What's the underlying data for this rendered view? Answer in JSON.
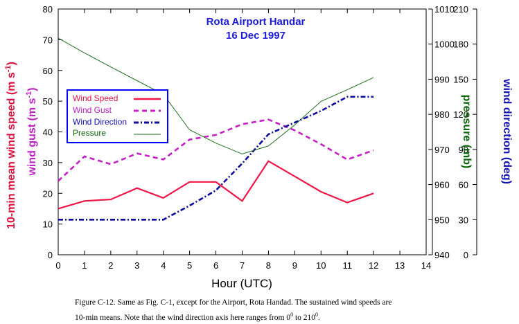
{
  "chart_data": {
    "type": "line",
    "title": "Rota Airport Handar",
    "subtitle": "16 Dec 1997",
    "xlabel": "Hour (UTC)",
    "x": [
      0,
      1,
      2,
      3,
      4,
      5,
      6,
      7,
      8,
      9,
      10,
      11,
      12
    ],
    "xlim": [
      0,
      14
    ],
    "xticks": [
      "0",
      "1",
      "2",
      "3",
      "4",
      "5",
      "6",
      "7",
      "8",
      "9",
      "10",
      "11",
      "12",
      "13",
      "14"
    ],
    "axes": {
      "left1": {
        "label_main": "10-min mean wind speed (m s",
        "label_sup": "-1",
        "label_end": ")",
        "color": "#e0103c",
        "range": [
          0,
          80
        ],
        "ticks": [
          "0",
          "10",
          "20",
          "30",
          "40",
          "50",
          "60",
          "70",
          "80"
        ]
      },
      "left2": {
        "label_main": "wind gust (m s",
        "label_sup": "-1",
        "label_end": ")",
        "color": "#c020c8"
      },
      "pressure": {
        "label": "pressure (mb)",
        "color": "#0a640a",
        "range": [
          940,
          1010
        ],
        "ticks": [
          "940",
          "950",
          "960",
          "970",
          "980",
          "990",
          "1000",
          "1010"
        ]
      },
      "direction": {
        "label": "wind direction (deg)",
        "color": "#1010b4",
        "range": [
          0,
          210
        ],
        "ticks": [
          "0",
          "30",
          "60",
          "90",
          "120",
          "150",
          "180",
          "210"
        ]
      }
    },
    "series": [
      {
        "name": "Wind Speed",
        "axis": "left1",
        "style": "solid",
        "color": "#f01446",
        "values": [
          15.0,
          17.5,
          18.0,
          21.7,
          18.5,
          23.7,
          23.7,
          17.5,
          30.5,
          25.5,
          20.5,
          17.0,
          20.0
        ]
      },
      {
        "name": "Wind Gust",
        "axis": "left1",
        "style": "dashed",
        "color": "#c81ec8",
        "values": [
          24.0,
          32.0,
          29.5,
          33.0,
          31.0,
          37.5,
          39.0,
          42.5,
          44.0,
          40.5,
          36.0,
          31.0,
          34.0
        ]
      },
      {
        "name": "Wind Direction",
        "axis": "direction",
        "style": "dashdot",
        "color": "#0a0aa0",
        "values": [
          30,
          30,
          30,
          30,
          30,
          42,
          55,
          78,
          103,
          113,
          123,
          135,
          135
        ]
      },
      {
        "name": "Pressure",
        "axis": "pressure",
        "style": "thin",
        "color": "#1e6e1e",
        "values": [
          1001.7,
          997.5,
          993.5,
          989.6,
          985.7,
          975.6,
          971.8,
          968.7,
          971.0,
          977.0,
          983.7,
          987.0,
          990.5
        ]
      }
    ]
  },
  "caption": {
    "line1": "Figure C-12. Same as Fig. C-1, except for the Airport, Rota Handad. The sustained wind speeds are",
    "line2_pre": "10-min means. Note that the wind direction axis here ranges from 0",
    "line2_sup1": "0",
    "line2_mid": " to 210",
    "line2_sup2": "0",
    "line2_end": "."
  }
}
